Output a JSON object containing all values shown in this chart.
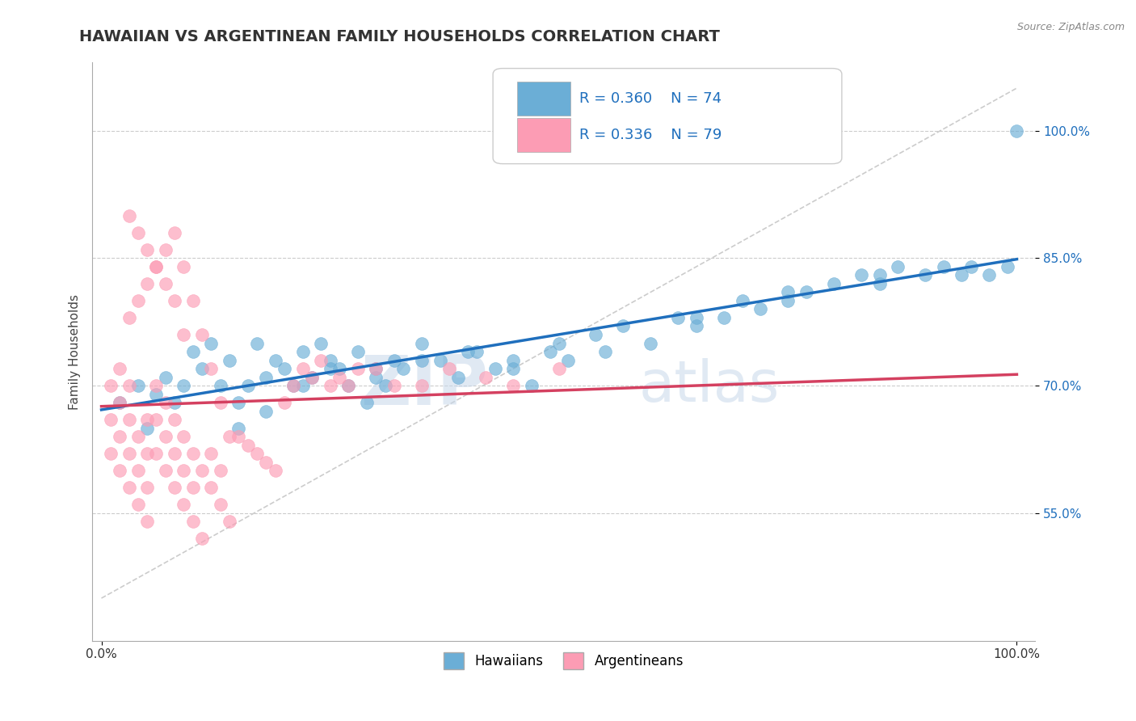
{
  "title": "HAWAIIAN VS ARGENTINEAN FAMILY HOUSEHOLDS CORRELATION CHART",
  "source_text": "Source: ZipAtlas.com",
  "ylabel": "Family Households",
  "watermark_zip": "ZIP",
  "watermark_atlas": "atlas",
  "hawaiian_color": "#6baed6",
  "argentinean_color": "#fc9cb4",
  "trend_blue": "#1f6fbd",
  "trend_pink": "#d44060",
  "diag_color": "#cccccc",
  "background_color": "#ffffff",
  "grid_color": "#cccccc",
  "hawaiians_x": [
    2,
    4,
    5,
    6,
    7,
    8,
    9,
    10,
    11,
    12,
    13,
    14,
    15,
    16,
    17,
    18,
    19,
    20,
    21,
    22,
    23,
    24,
    25,
    26,
    27,
    28,
    29,
    30,
    31,
    32,
    33,
    35,
    37,
    39,
    41,
    43,
    45,
    47,
    49,
    51,
    54,
    57,
    60,
    63,
    65,
    68,
    70,
    72,
    75,
    77,
    80,
    83,
    85,
    87,
    90,
    92,
    94,
    97,
    99,
    100,
    15,
    18,
    22,
    25,
    30,
    35,
    40,
    45,
    50,
    55,
    65,
    75,
    85,
    95
  ],
  "hawaiians_y": [
    68,
    70,
    65,
    69,
    71,
    68,
    70,
    74,
    72,
    75,
    70,
    73,
    68,
    70,
    75,
    71,
    73,
    72,
    70,
    74,
    71,
    75,
    73,
    72,
    70,
    74,
    68,
    72,
    70,
    73,
    72,
    75,
    73,
    71,
    74,
    72,
    73,
    70,
    74,
    73,
    76,
    77,
    75,
    78,
    77,
    78,
    80,
    79,
    80,
    81,
    82,
    83,
    82,
    84,
    83,
    84,
    83,
    83,
    84,
    100,
    65,
    67,
    70,
    72,
    71,
    73,
    74,
    72,
    75,
    74,
    78,
    81,
    83,
    84
  ],
  "argentineans_x": [
    1,
    1,
    1,
    2,
    2,
    2,
    2,
    3,
    3,
    3,
    3,
    4,
    4,
    4,
    5,
    5,
    5,
    5,
    6,
    6,
    6,
    7,
    7,
    7,
    8,
    8,
    8,
    9,
    9,
    9,
    10,
    10,
    10,
    11,
    11,
    12,
    12,
    13,
    13,
    14,
    15,
    16,
    17,
    18,
    19,
    20,
    21,
    22,
    23,
    24,
    25,
    26,
    27,
    28,
    30,
    32,
    35,
    38,
    42,
    45,
    50,
    3,
    4,
    5,
    6,
    7,
    8,
    9,
    10,
    11,
    12,
    13,
    14,
    3,
    4,
    5,
    6,
    7,
    8,
    9
  ],
  "argentineans_y": [
    62,
    66,
    70,
    60,
    64,
    68,
    72,
    58,
    62,
    66,
    70,
    56,
    60,
    64,
    54,
    58,
    62,
    66,
    62,
    66,
    70,
    60,
    64,
    68,
    58,
    62,
    66,
    56,
    60,
    64,
    54,
    58,
    62,
    52,
    60,
    58,
    62,
    56,
    60,
    54,
    64,
    63,
    62,
    61,
    60,
    68,
    70,
    72,
    71,
    73,
    70,
    71,
    70,
    72,
    72,
    70,
    70,
    72,
    71,
    70,
    72,
    78,
    80,
    82,
    84,
    86,
    88,
    84,
    80,
    76,
    72,
    68,
    64,
    90,
    88,
    86,
    84,
    82,
    80,
    76
  ],
  "title_fontsize": 14,
  "axis_label_fontsize": 11,
  "tick_fontsize": 11,
  "legend_fontsize": 14
}
